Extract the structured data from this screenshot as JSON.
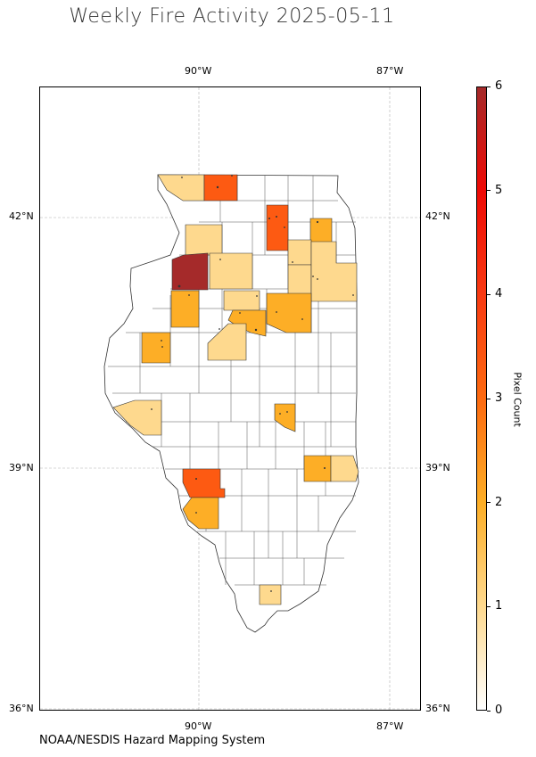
{
  "title": "Weekly Fire Activity 2025-05-11",
  "credit": "NOAA/NESDIS Hazard Mapping System",
  "lon_labels": [
    "90°W",
    "87°W"
  ],
  "lat_labels": [
    "42°N",
    "39°N",
    "36°N"
  ],
  "colorbar": {
    "label": "Pixel Count",
    "min": 0,
    "max": 6,
    "ticks": [
      "0",
      "1",
      "2",
      "3",
      "4",
      "5",
      "6"
    ],
    "colors": [
      "#ffffff",
      "#fed98e",
      "#fdae26",
      "#fd6a10",
      "#f83a12",
      "#ee0a05",
      "#a52a2a"
    ]
  },
  "fire_counties": [
    {
      "id": "jo-daviess",
      "count": 1
    },
    {
      "id": "stephenson",
      "count": 3
    },
    {
      "id": "dekalb",
      "count": 3
    },
    {
      "id": "kane",
      "count": 2
    },
    {
      "id": "carroll",
      "count": 1
    },
    {
      "id": "lee",
      "count": 1
    },
    {
      "id": "rock-island",
      "count": 6
    },
    {
      "id": "kendall",
      "count": 1
    },
    {
      "id": "grundy",
      "count": 1
    },
    {
      "id": "will",
      "count": 1
    },
    {
      "id": "henry",
      "count": 2
    },
    {
      "id": "marshall",
      "count": 1
    },
    {
      "id": "peoria",
      "count": 2
    },
    {
      "id": "livingston",
      "count": 2
    },
    {
      "id": "mcdonough",
      "count": 2
    },
    {
      "id": "fulton",
      "count": 1
    },
    {
      "id": "adams",
      "count": 1
    },
    {
      "id": "macon",
      "count": 2
    },
    {
      "id": "jasper",
      "count": 2
    },
    {
      "id": "crawford",
      "count": 1
    },
    {
      "id": "madison",
      "count": 3
    },
    {
      "id": "st-clair",
      "count": 2
    },
    {
      "id": "williamson",
      "count": 1
    }
  ]
}
